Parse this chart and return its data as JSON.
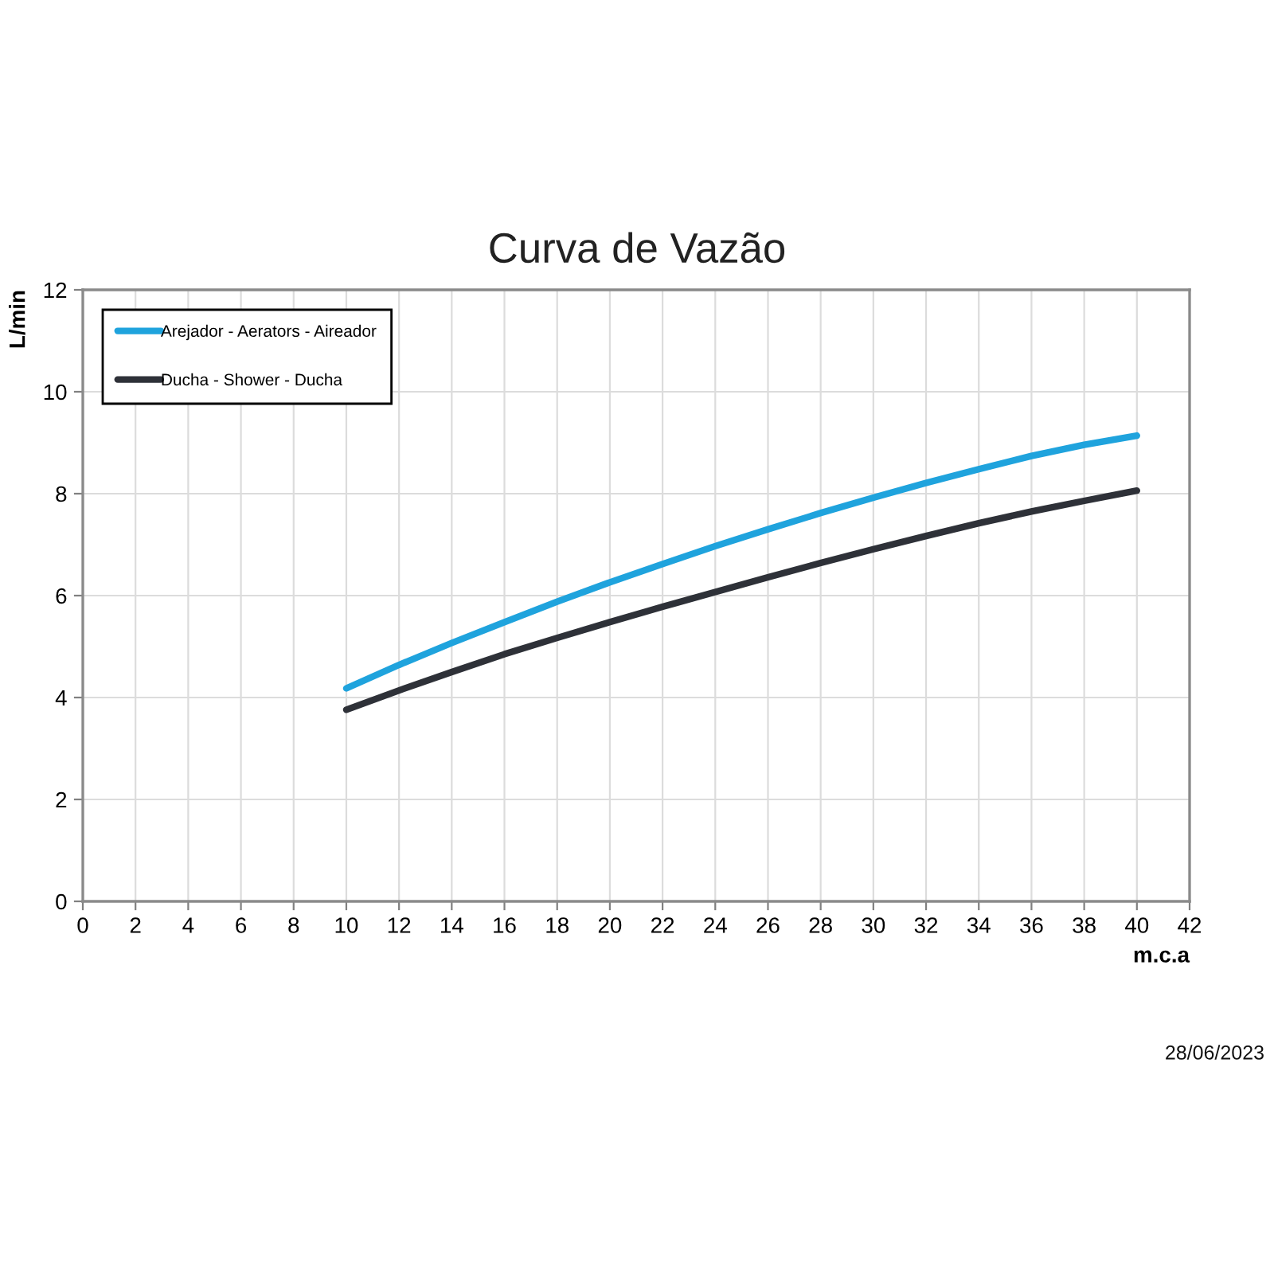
{
  "chart_data": {
    "type": "line",
    "title": "Curva de Vazão",
    "xlabel": "m.c.a",
    "ylabel": "L/min",
    "x": [
      10,
      12,
      14,
      16,
      18,
      20,
      22,
      24,
      26,
      28,
      30,
      32,
      34,
      36,
      38,
      40
    ],
    "series": [
      {
        "name": "Arejador - Aerators - Aireador",
        "color": "#1fa3dd",
        "values": [
          4.18,
          4.64,
          5.07,
          5.48,
          5.88,
          6.26,
          6.62,
          6.97,
          7.3,
          7.62,
          7.92,
          8.21,
          8.48,
          8.74,
          8.96,
          9.14
        ]
      },
      {
        "name": "Ducha - Shower - Ducha",
        "color": "#2e3138",
        "values": [
          3.76,
          4.14,
          4.5,
          4.85,
          5.17,
          5.48,
          5.78,
          6.07,
          6.36,
          6.64,
          6.91,
          7.17,
          7.42,
          7.65,
          7.86,
          8.06
        ]
      }
    ],
    "xlim": [
      0,
      42
    ],
    "xticks": [
      0,
      2,
      4,
      6,
      8,
      10,
      12,
      14,
      16,
      18,
      20,
      22,
      24,
      26,
      28,
      30,
      32,
      34,
      36,
      38,
      40,
      42
    ],
    "ylim": [
      0,
      12
    ],
    "yticks": [
      0,
      2,
      4,
      6,
      8,
      10,
      12
    ],
    "grid": true,
    "legend": "top left",
    "annotations": [
      "28/06/2023"
    ]
  }
}
